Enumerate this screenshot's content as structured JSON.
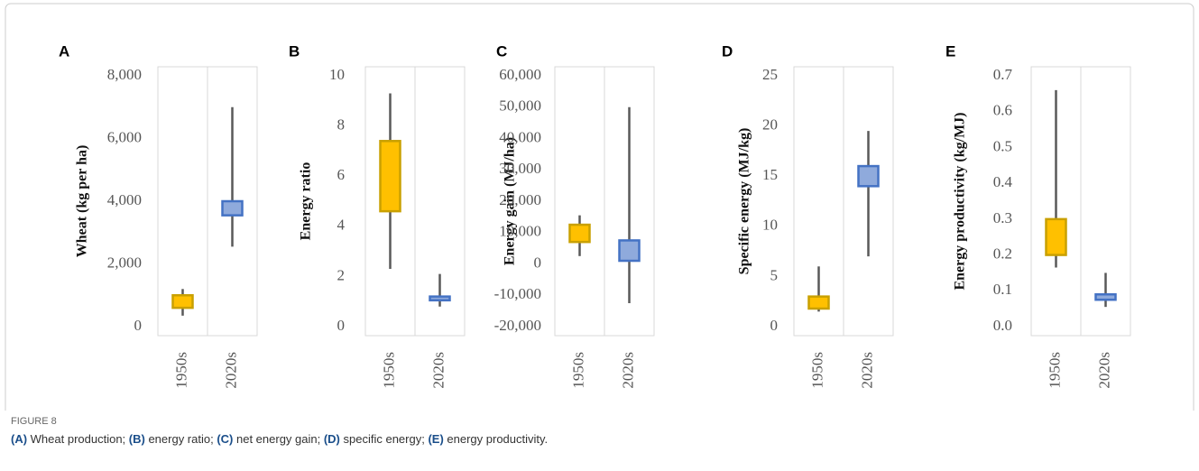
{
  "chart_data": [
    {
      "type": "box",
      "panel": "A",
      "ylabel": "Wheat (kg per ha)",
      "categories": [
        "1950s",
        "2020s"
      ],
      "colors": [
        "#ffc000",
        "#8faadc"
      ],
      "min": [
        350,
        2550
      ],
      "q1": [
        600,
        3550
      ],
      "q3": [
        1000,
        4000
      ],
      "max": [
        1200,
        7000
      ],
      "ylim": [
        0,
        8000
      ],
      "yticks": [
        0,
        {
          "value": 2000,
          "label": "2,000"
        },
        {
          "value": 4000,
          "label": "4,000"
        },
        {
          "value": 6000,
          "label": "6,000"
        },
        {
          "value": 8000,
          "label": "8,000"
        }
      ]
    },
    {
      "type": "box",
      "panel": "B",
      "ylabel": "Energy ratio",
      "categories": [
        "1950s",
        "2020s"
      ],
      "colors": [
        "#ffc000",
        "#8faadc"
      ],
      "min": [
        2.3,
        0.8
      ],
      "q1": [
        4.6,
        1.05
      ],
      "q3": [
        7.4,
        1.2
      ],
      "max": [
        9.3,
        2.1
      ],
      "ylim": [
        0,
        10
      ],
      "yticks": [
        0,
        2,
        4,
        6,
        8,
        10
      ]
    },
    {
      "type": "box",
      "panel": "C",
      "ylabel": "Energy gain (MJ/ha)",
      "categories": [
        "1950s",
        "2020s"
      ],
      "colors": [
        "#ffc000",
        "#8faadc"
      ],
      "min": [
        2500,
        -12500
      ],
      "q1": [
        7000,
        1000
      ],
      "q3": [
        12500,
        7500
      ],
      "max": [
        15500,
        50000
      ],
      "ylim": [
        -20000,
        60000
      ],
      "yticks": [
        {
          "value": -20000,
          "label": "-20,000"
        },
        {
          "value": -10000,
          "label": "-10,000"
        },
        0,
        {
          "value": 10000,
          "label": "10,000"
        },
        {
          "value": 20000,
          "label": "20,000"
        },
        {
          "value": 30000,
          "label": "30,000"
        },
        {
          "value": 40000,
          "label": "40,000"
        },
        {
          "value": 50000,
          "label": "50,000"
        },
        {
          "value": 60000,
          "label": "60,000"
        }
      ]
    },
    {
      "type": "box",
      "panel": "D",
      "ylabel": "Specific energy (MJ/kg)",
      "categories": [
        "1950s",
        "2020s"
      ],
      "colors": [
        "#ffc000",
        "#8faadc"
      ],
      "min": [
        1.5,
        7
      ],
      "q1": [
        1.8,
        14
      ],
      "q3": [
        3,
        16
      ],
      "max": [
        6,
        19.5
      ],
      "ylim": [
        0,
        25
      ],
      "yticks": [
        0,
        5,
        10,
        15,
        20,
        25
      ]
    },
    {
      "type": "box",
      "panel": "E",
      "ylabel": "Energy productivity (kg/MJ)",
      "categories": [
        "1950s",
        "2020s"
      ],
      "colors": [
        "#ffc000",
        "#8faadc"
      ],
      "min": [
        0.165,
        0.055
      ],
      "q1": [
        0.2,
        0.075
      ],
      "q3": [
        0.3,
        0.09
      ],
      "max": [
        0.66,
        0.15
      ],
      "ylim": [
        0,
        0.7
      ],
      "yticks": [
        {
          "value": 0,
          "label": "0.0"
        },
        0.1,
        0.2,
        0.3,
        0.4,
        0.5,
        0.6,
        0.7
      ]
    }
  ],
  "caption": {
    "figure": "FIGURE 8",
    "parts": [
      {
        "label": "(A)",
        "text": " Wheat production; "
      },
      {
        "label": "(B)",
        "text": " energy ratio; "
      },
      {
        "label": "(C)",
        "text": " net energy gain; "
      },
      {
        "label": "(D)",
        "text": " specific energy; "
      },
      {
        "label": "(E)",
        "text": " energy productivity."
      }
    ]
  }
}
